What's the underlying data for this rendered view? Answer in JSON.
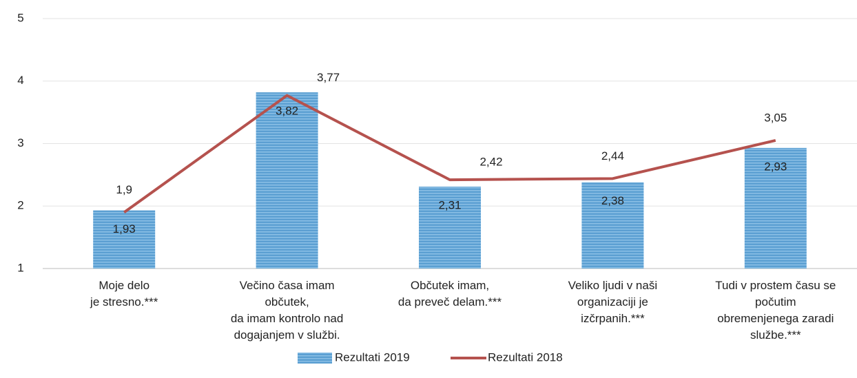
{
  "chart_data": {
    "type": "bar",
    "categories": [
      "Moje delo\nje stresno.***",
      "Večino časa imam\nobčutek,\nda imam kontrolo nad\ndogajanjem v službi.",
      "Občutek imam,\nda preveč delam.***",
      "Veliko ljudi v naši\norganizaciji je\nizčrpanih.***",
      "Tudi v prostem času se\npočutim\nobremenjenega zaradi\nslužbe.***"
    ],
    "series": [
      {
        "name": "Rezultati 2019",
        "type": "bar",
        "color": "#5b9fd2",
        "values": [
          1.93,
          3.82,
          2.31,
          2.38,
          2.93
        ],
        "value_labels": [
          "1,93",
          "3,82",
          "2,31",
          "2,38",
          "2,93"
        ]
      },
      {
        "name": "Rezultati 2018",
        "type": "line",
        "color": "#b5524e",
        "values": [
          1.9,
          3.77,
          2.42,
          2.44,
          3.05
        ],
        "value_labels": [
          "1,9",
          "3,77",
          "2,42",
          "2,44",
          "3,05"
        ]
      }
    ],
    "ylim": [
      1,
      5
    ],
    "yticks": [
      1,
      2,
      3,
      4,
      5
    ],
    "grid": true,
    "legend": "bottom"
  }
}
